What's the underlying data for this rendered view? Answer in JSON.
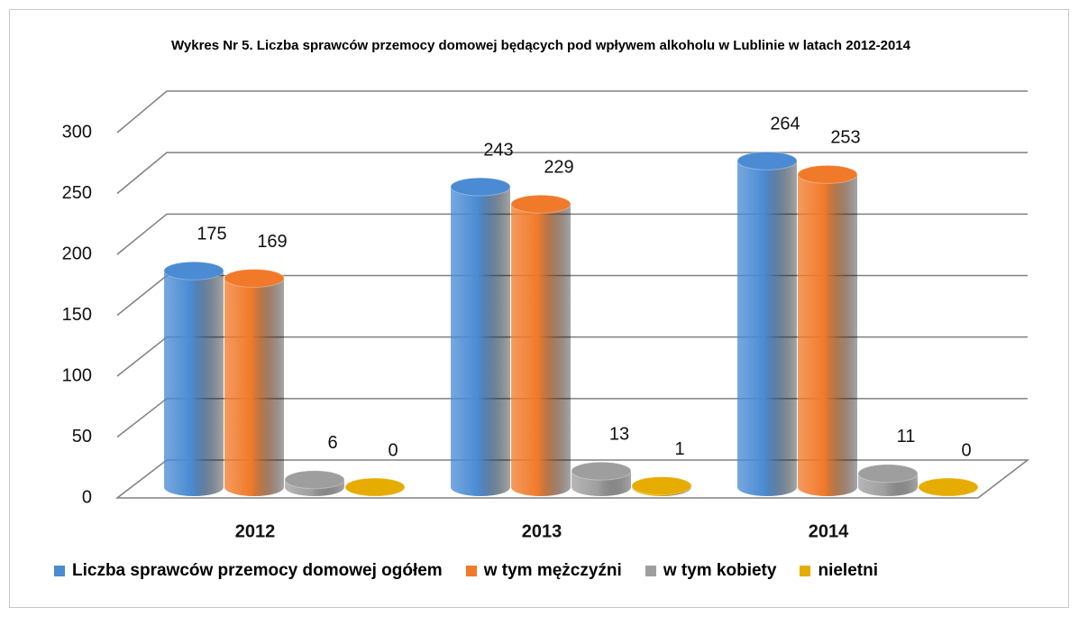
{
  "chart_data": {
    "type": "bar3d",
    "title": "Wykres Nr 5.  Liczba sprawców przemocy domowej będących pod wpływem alkoholu  w Lublinie w latach 2012-2014",
    "categories": [
      "2012",
      "2013",
      "2014"
    ],
    "series": [
      {
        "name": "Liczba sprawców przemocy domowej ogółem",
        "color": "#4a8bd4",
        "values": [
          175,
          243,
          264
        ]
      },
      {
        "name": "w tym mężczyźni",
        "color": "#f07a2a",
        "values": [
          169,
          229,
          253
        ]
      },
      {
        "name": "w tym kobiety",
        "color": "#9e9e9e",
        "values": [
          6,
          13,
          11
        ]
      },
      {
        "name": "nieletni",
        "color": "#e6ac00",
        "values": [
          0,
          1,
          0
        ]
      }
    ],
    "ylim": [
      0,
      300
    ],
    "yticks": [
      0,
      50,
      100,
      150,
      200,
      250,
      300
    ],
    "grid": true,
    "legend": "bottom"
  }
}
